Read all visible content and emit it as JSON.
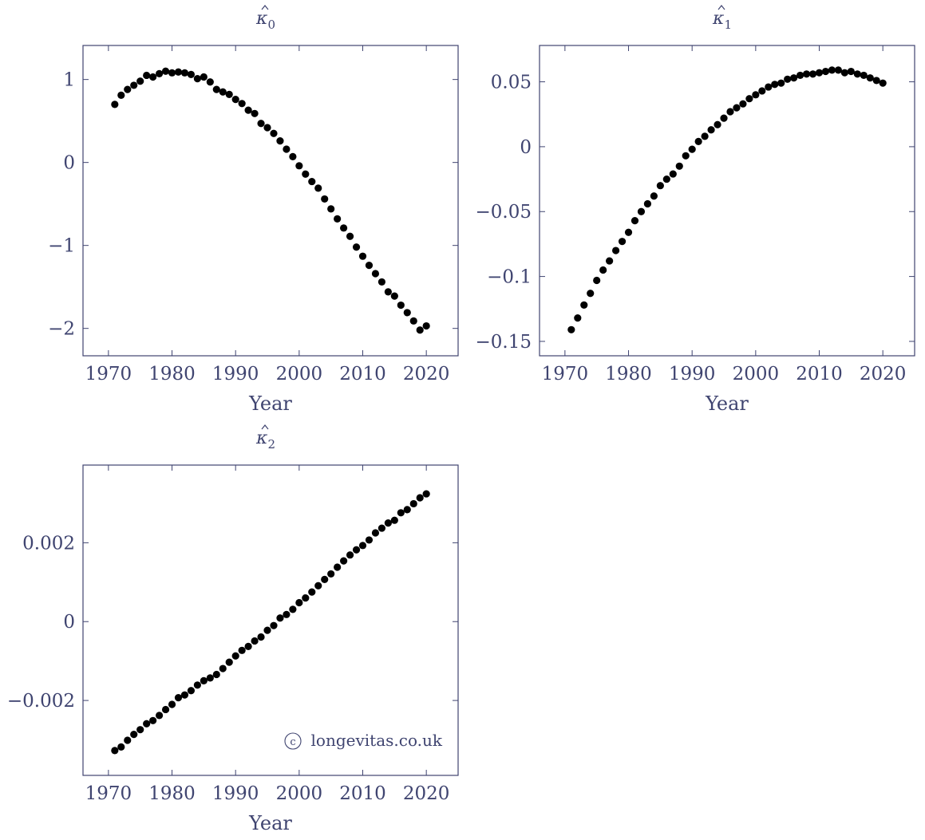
{
  "colors": {
    "axis": "#3f4470",
    "points": "#000000",
    "background": "#ffffff"
  },
  "credit": {
    "symbol": "c",
    "text": "longevitas.co.uk"
  },
  "chart_data": [
    {
      "type": "scatter",
      "title": {
        "base": "κ",
        "subscript": "0"
      },
      "xlabel": "Year",
      "ylabel": "",
      "grid": false,
      "xlim": [
        1966,
        2025
      ],
      "ylim": [
        -2.33,
        1.41
      ],
      "xticks": [
        1970,
        1980,
        1990,
        2000,
        2010,
        2020
      ],
      "xtick_labels": [
        "1970",
        "1980",
        "1990",
        "2000",
        "2010",
        "2020"
      ],
      "yticks": [
        1,
        0,
        -1,
        -2
      ],
      "ytick_labels": [
        "1",
        "0",
        "−1",
        "−2"
      ],
      "x": [
        1971,
        1972,
        1973,
        1974,
        1975,
        1976,
        1977,
        1978,
        1979,
        1980,
        1981,
        1982,
        1983,
        1984,
        1985,
        1986,
        1987,
        1988,
        1989,
        1990,
        1991,
        1992,
        1993,
        1994,
        1995,
        1996,
        1997,
        1998,
        1999,
        2000,
        2001,
        2002,
        2003,
        2004,
        2005,
        2006,
        2007,
        2008,
        2009,
        2010,
        2011,
        2012,
        2013,
        2014,
        2015,
        2016,
        2017,
        2018,
        2019,
        2020
      ],
      "y": [
        0.7,
        0.81,
        0.88,
        0.93,
        0.98,
        1.05,
        1.03,
        1.07,
        1.1,
        1.08,
        1.09,
        1.08,
        1.06,
        1.01,
        1.03,
        0.97,
        0.88,
        0.85,
        0.82,
        0.76,
        0.71,
        0.63,
        0.59,
        0.47,
        0.42,
        0.35,
        0.26,
        0.16,
        0.07,
        -0.04,
        -0.14,
        -0.23,
        -0.31,
        -0.44,
        -0.56,
        -0.68,
        -0.79,
        -0.89,
        -1.02,
        -1.13,
        -1.24,
        -1.34,
        -1.44,
        -1.56,
        -1.61,
        -1.72,
        -1.81,
        -1.91,
        -2.02,
        -1.97
      ]
    },
    {
      "type": "scatter",
      "title": {
        "base": "κ",
        "subscript": "1"
      },
      "xlabel": "Year",
      "ylabel": "",
      "grid": false,
      "xlim": [
        1966,
        2025
      ],
      "ylim": [
        -0.1611,
        0.078
      ],
      "xticks": [
        1970,
        1980,
        1990,
        2000,
        2010,
        2020
      ],
      "xtick_labels": [
        "1970",
        "1980",
        "1990",
        "2000",
        "2010",
        "2020"
      ],
      "yticks": [
        0.05,
        0,
        -0.05,
        -0.1,
        -0.15
      ],
      "ytick_labels": [
        "0.05",
        "0",
        "−0.05",
        "−0.1",
        "−0.15"
      ],
      "x": [
        1971,
        1972,
        1973,
        1974,
        1975,
        1976,
        1977,
        1978,
        1979,
        1980,
        1981,
        1982,
        1983,
        1984,
        1985,
        1986,
        1987,
        1988,
        1989,
        1990,
        1991,
        1992,
        1993,
        1994,
        1995,
        1996,
        1997,
        1998,
        1999,
        2000,
        2001,
        2002,
        2003,
        2004,
        2005,
        2006,
        2007,
        2008,
        2009,
        2010,
        2011,
        2012,
        2013,
        2014,
        2015,
        2016,
        2017,
        2018,
        2019,
        2020
      ],
      "y": [
        -0.141,
        -0.132,
        -0.122,
        -0.113,
        -0.103,
        -0.095,
        -0.088,
        -0.08,
        -0.073,
        -0.066,
        -0.057,
        -0.05,
        -0.044,
        -0.038,
        -0.03,
        -0.025,
        -0.021,
        -0.015,
        -0.007,
        -0.002,
        0.004,
        0.008,
        0.013,
        0.017,
        0.022,
        0.027,
        0.03,
        0.033,
        0.037,
        0.04,
        0.043,
        0.046,
        0.048,
        0.049,
        0.052,
        0.053,
        0.055,
        0.056,
        0.056,
        0.057,
        0.058,
        0.059,
        0.059,
        0.057,
        0.058,
        0.056,
        0.055,
        0.053,
        0.051,
        0.049
      ]
    },
    {
      "type": "scatter",
      "title": {
        "base": "κ",
        "subscript": "2"
      },
      "xlabel": "Year",
      "ylabel": "",
      "grid": false,
      "xlim": [
        1966,
        2025
      ],
      "ylim": [
        -0.0039,
        0.00397
      ],
      "xticks": [
        1970,
        1980,
        1990,
        2000,
        2010,
        2020
      ],
      "xtick_labels": [
        "1970",
        "1980",
        "1990",
        "2000",
        "2010",
        "2020"
      ],
      "yticks": [
        0.002,
        0,
        -0.002
      ],
      "ytick_labels": [
        "0.002",
        "0",
        "−0.002"
      ],
      "x": [
        1971,
        1972,
        1973,
        1974,
        1975,
        1976,
        1977,
        1978,
        1979,
        1980,
        1981,
        1982,
        1983,
        1984,
        1985,
        1986,
        1987,
        1988,
        1989,
        1990,
        1991,
        1992,
        1993,
        1994,
        1995,
        1996,
        1997,
        1998,
        1999,
        2000,
        2001,
        2002,
        2003,
        2004,
        2005,
        2006,
        2007,
        2008,
        2009,
        2010,
        2011,
        2012,
        2013,
        2014,
        2015,
        2016,
        2017,
        2018,
        2019,
        2020
      ],
      "y": [
        -0.00327,
        -0.00318,
        -0.00301,
        -0.00286,
        -0.00274,
        -0.00259,
        -0.00251,
        -0.00238,
        -0.00223,
        -0.0021,
        -0.00193,
        -0.00186,
        -0.00175,
        -0.00161,
        -0.0015,
        -0.00143,
        -0.00134,
        -0.00119,
        -0.00103,
        -0.00087,
        -0.00073,
        -0.00063,
        -0.00049,
        -0.00039,
        -0.00022,
        -0.0001,
        9e-05,
        0.00018,
        0.00031,
        0.00048,
        0.0006,
        0.00075,
        0.00091,
        0.00107,
        0.00121,
        0.00138,
        0.00154,
        0.00169,
        0.00182,
        0.00193,
        0.00207,
        0.00225,
        0.00237,
        0.0025,
        0.00257,
        0.00276,
        0.00284,
        0.00299,
        0.00314,
        0.00324
      ]
    }
  ]
}
